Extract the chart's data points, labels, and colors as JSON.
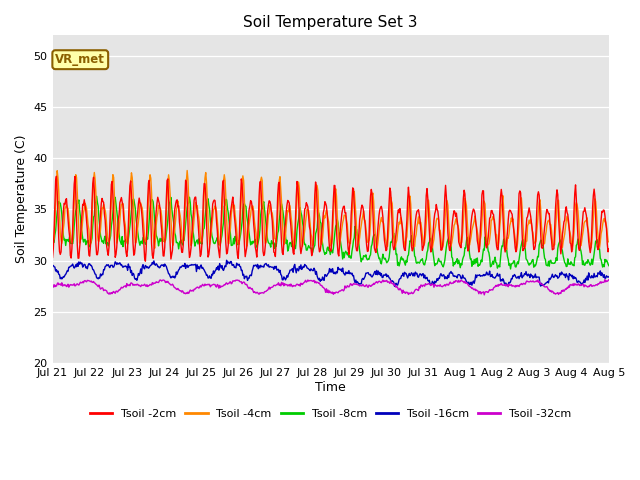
{
  "title": "Soil Temperature Set 3",
  "xlabel": "Time",
  "ylabel": "Soil Temperature (C)",
  "ylim": [
    20,
    52
  ],
  "yticks": [
    20,
    25,
    30,
    35,
    40,
    45,
    50
  ],
  "background_color": "#e5e5e5",
  "legend_label": "VR_met",
  "series_colors": {
    "Tsoil -2cm": "#ff0000",
    "Tsoil -4cm": "#ff8800",
    "Tsoil -8cm": "#00cc00",
    "Tsoil -16cm": "#0000bb",
    "Tsoil -32cm": "#cc00cc"
  },
  "xtick_labels": [
    "Jul 21",
    "Jul 22",
    "Jul 23",
    "Jul 24",
    "Jul 25",
    "Jul 26",
    "Jul 27",
    "Jul 28",
    "Jul 29",
    "Jul 30",
    "Jul 31",
    "Aug 1",
    "Aug 2",
    "Aug 3",
    "Aug 4",
    "Aug 5"
  ],
  "num_days": 15,
  "points_per_day": 48
}
